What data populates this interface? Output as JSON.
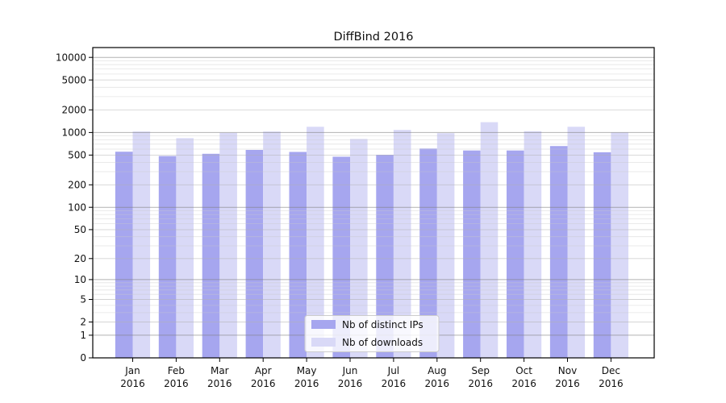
{
  "chart_data": {
    "type": "bar",
    "title": "DiffBind 2016",
    "scale": "log1p",
    "grid": "on",
    "legend_position": "lower-center",
    "year_label": "2016",
    "categories": [
      "Jan",
      "Feb",
      "Mar",
      "Apr",
      "May",
      "Jun",
      "Jul",
      "Aug",
      "Sep",
      "Oct",
      "Nov",
      "Dec"
    ],
    "series": [
      {
        "name": "Nb of distinct IPs",
        "color": "#a6a6ef",
        "values": [
          555,
          485,
          520,
          585,
          550,
          475,
          505,
          610,
          575,
          575,
          660,
          545
        ]
      },
      {
        "name": "Nb of downloads",
        "color": "#d9d9f7",
        "values": [
          1030,
          840,
          990,
          1030,
          1190,
          820,
          1080,
          980,
          1370,
          1040,
          1190,
          1000
        ]
      }
    ],
    "y_ticks": [
      0,
      1,
      2,
      5,
      10,
      20,
      50,
      100,
      200,
      500,
      1000,
      2000,
      5000,
      10000
    ],
    "ylim": [
      0,
      13500
    ],
    "colors": {
      "major_grid": "#7e7e7e",
      "mid_grid": "#b0b0b0",
      "minor_grid": "#c9c9c9",
      "axis": "#000000",
      "legend_border": "#cccccc"
    }
  }
}
